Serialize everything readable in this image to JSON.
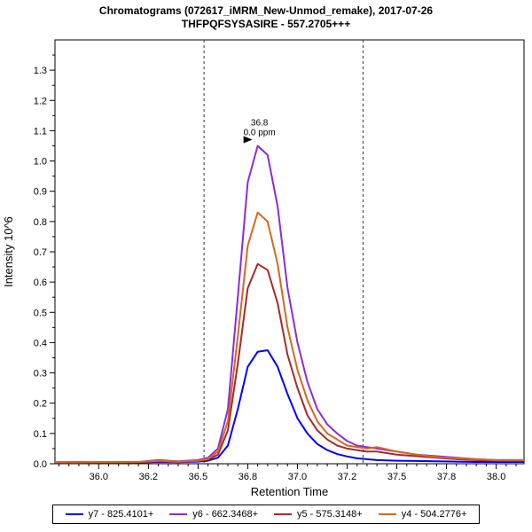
{
  "title": {
    "line1": "Chromatograms (072617_iMRM_New-Unmod_remake), 2017-07-26",
    "line2": "THFPQFSYSASIRE - 557.2705+++"
  },
  "chart_data": {
    "type": "line",
    "title": "Chromatograms (072617_iMRM_New-Unmod_remake), 2017-07-26",
    "subtitle": "THFPQFSYSASIRE - 557.2705+++",
    "xlabel": "Retention Time",
    "ylabel": "Intensity 10^6",
    "xlim": [
      35.78,
      38.14
    ],
    "ylim": [
      0,
      1.4
    ],
    "grid": false,
    "legend_position": "bottom",
    "x_ticks": [
      {
        "v": 36.0,
        "label": "36.0"
      },
      {
        "v": 36.25,
        "label": "36.2"
      },
      {
        "v": 36.5,
        "label": "36.5"
      },
      {
        "v": 36.75,
        "label": "36.8"
      },
      {
        "v": 37.0,
        "label": "37.0"
      },
      {
        "v": 37.25,
        "label": "37.2"
      },
      {
        "v": 37.5,
        "label": "37.5"
      },
      {
        "v": 37.75,
        "label": "37.8"
      },
      {
        "v": 38.0,
        "label": "38.0"
      }
    ],
    "y_ticks": [
      0.0,
      0.1,
      0.2,
      0.3,
      0.4,
      0.5,
      0.6,
      0.7,
      0.8,
      0.9,
      1.0,
      1.1,
      1.2,
      1.3
    ],
    "boundaries": [
      36.53,
      37.33
    ],
    "annotation": {
      "rt_label": "36.8",
      "ppm_label": "0.0 ppm",
      "x": 36.8,
      "y": 1.05,
      "color": "#8A2BE2"
    },
    "x": [
      35.78,
      35.9,
      36.0,
      36.1,
      36.2,
      36.3,
      36.4,
      36.5,
      36.55,
      36.6,
      36.65,
      36.7,
      36.75,
      36.8,
      36.85,
      36.9,
      36.95,
      37.0,
      37.05,
      37.1,
      37.15,
      37.2,
      37.25,
      37.3,
      37.35,
      37.4,
      37.5,
      37.6,
      37.7,
      37.8,
      37.9,
      38.0,
      38.14
    ],
    "series": [
      {
        "name": "y7 - 825.4101+",
        "color": "#0000FF",
        "values": [
          0.003,
          0.003,
          0.004,
          0.004,
          0.004,
          0.006,
          0.005,
          0.007,
          0.01,
          0.02,
          0.06,
          0.18,
          0.32,
          0.37,
          0.375,
          0.32,
          0.23,
          0.15,
          0.1,
          0.065,
          0.045,
          0.032,
          0.024,
          0.018,
          0.015,
          0.012,
          0.01,
          0.009,
          0.008,
          0.007,
          0.006,
          0.006,
          0.006
        ]
      },
      {
        "name": "y6 - 662.3468+",
        "color": "#8A2BE2",
        "values": [
          0.005,
          0.006,
          0.005,
          0.006,
          0.006,
          0.012,
          0.008,
          0.012,
          0.02,
          0.05,
          0.18,
          0.55,
          0.93,
          1.05,
          1.02,
          0.85,
          0.58,
          0.4,
          0.27,
          0.18,
          0.13,
          0.1,
          0.075,
          0.06,
          0.055,
          0.05,
          0.04,
          0.03,
          0.025,
          0.02,
          0.015,
          0.012,
          0.012
        ]
      },
      {
        "name": "y5 - 575.3148+",
        "color": "#A52A2A",
        "values": [
          0.004,
          0.004,
          0.005,
          0.005,
          0.005,
          0.008,
          0.006,
          0.009,
          0.014,
          0.03,
          0.11,
          0.33,
          0.58,
          0.66,
          0.64,
          0.53,
          0.36,
          0.25,
          0.16,
          0.11,
          0.08,
          0.06,
          0.05,
          0.045,
          0.04,
          0.04,
          0.03,
          0.025,
          0.02,
          0.015,
          0.012,
          0.01,
          0.01
        ]
      },
      {
        "name": "y4 - 504.2776+",
        "color": "#D2691E",
        "values": [
          0.005,
          0.005,
          0.005,
          0.005,
          0.006,
          0.01,
          0.007,
          0.01,
          0.016,
          0.04,
          0.14,
          0.42,
          0.72,
          0.83,
          0.8,
          0.66,
          0.45,
          0.31,
          0.21,
          0.14,
          0.1,
          0.08,
          0.06,
          0.055,
          0.05,
          0.055,
          0.04,
          0.03,
          0.022,
          0.018,
          0.015,
          0.012,
          0.012
        ]
      }
    ]
  }
}
